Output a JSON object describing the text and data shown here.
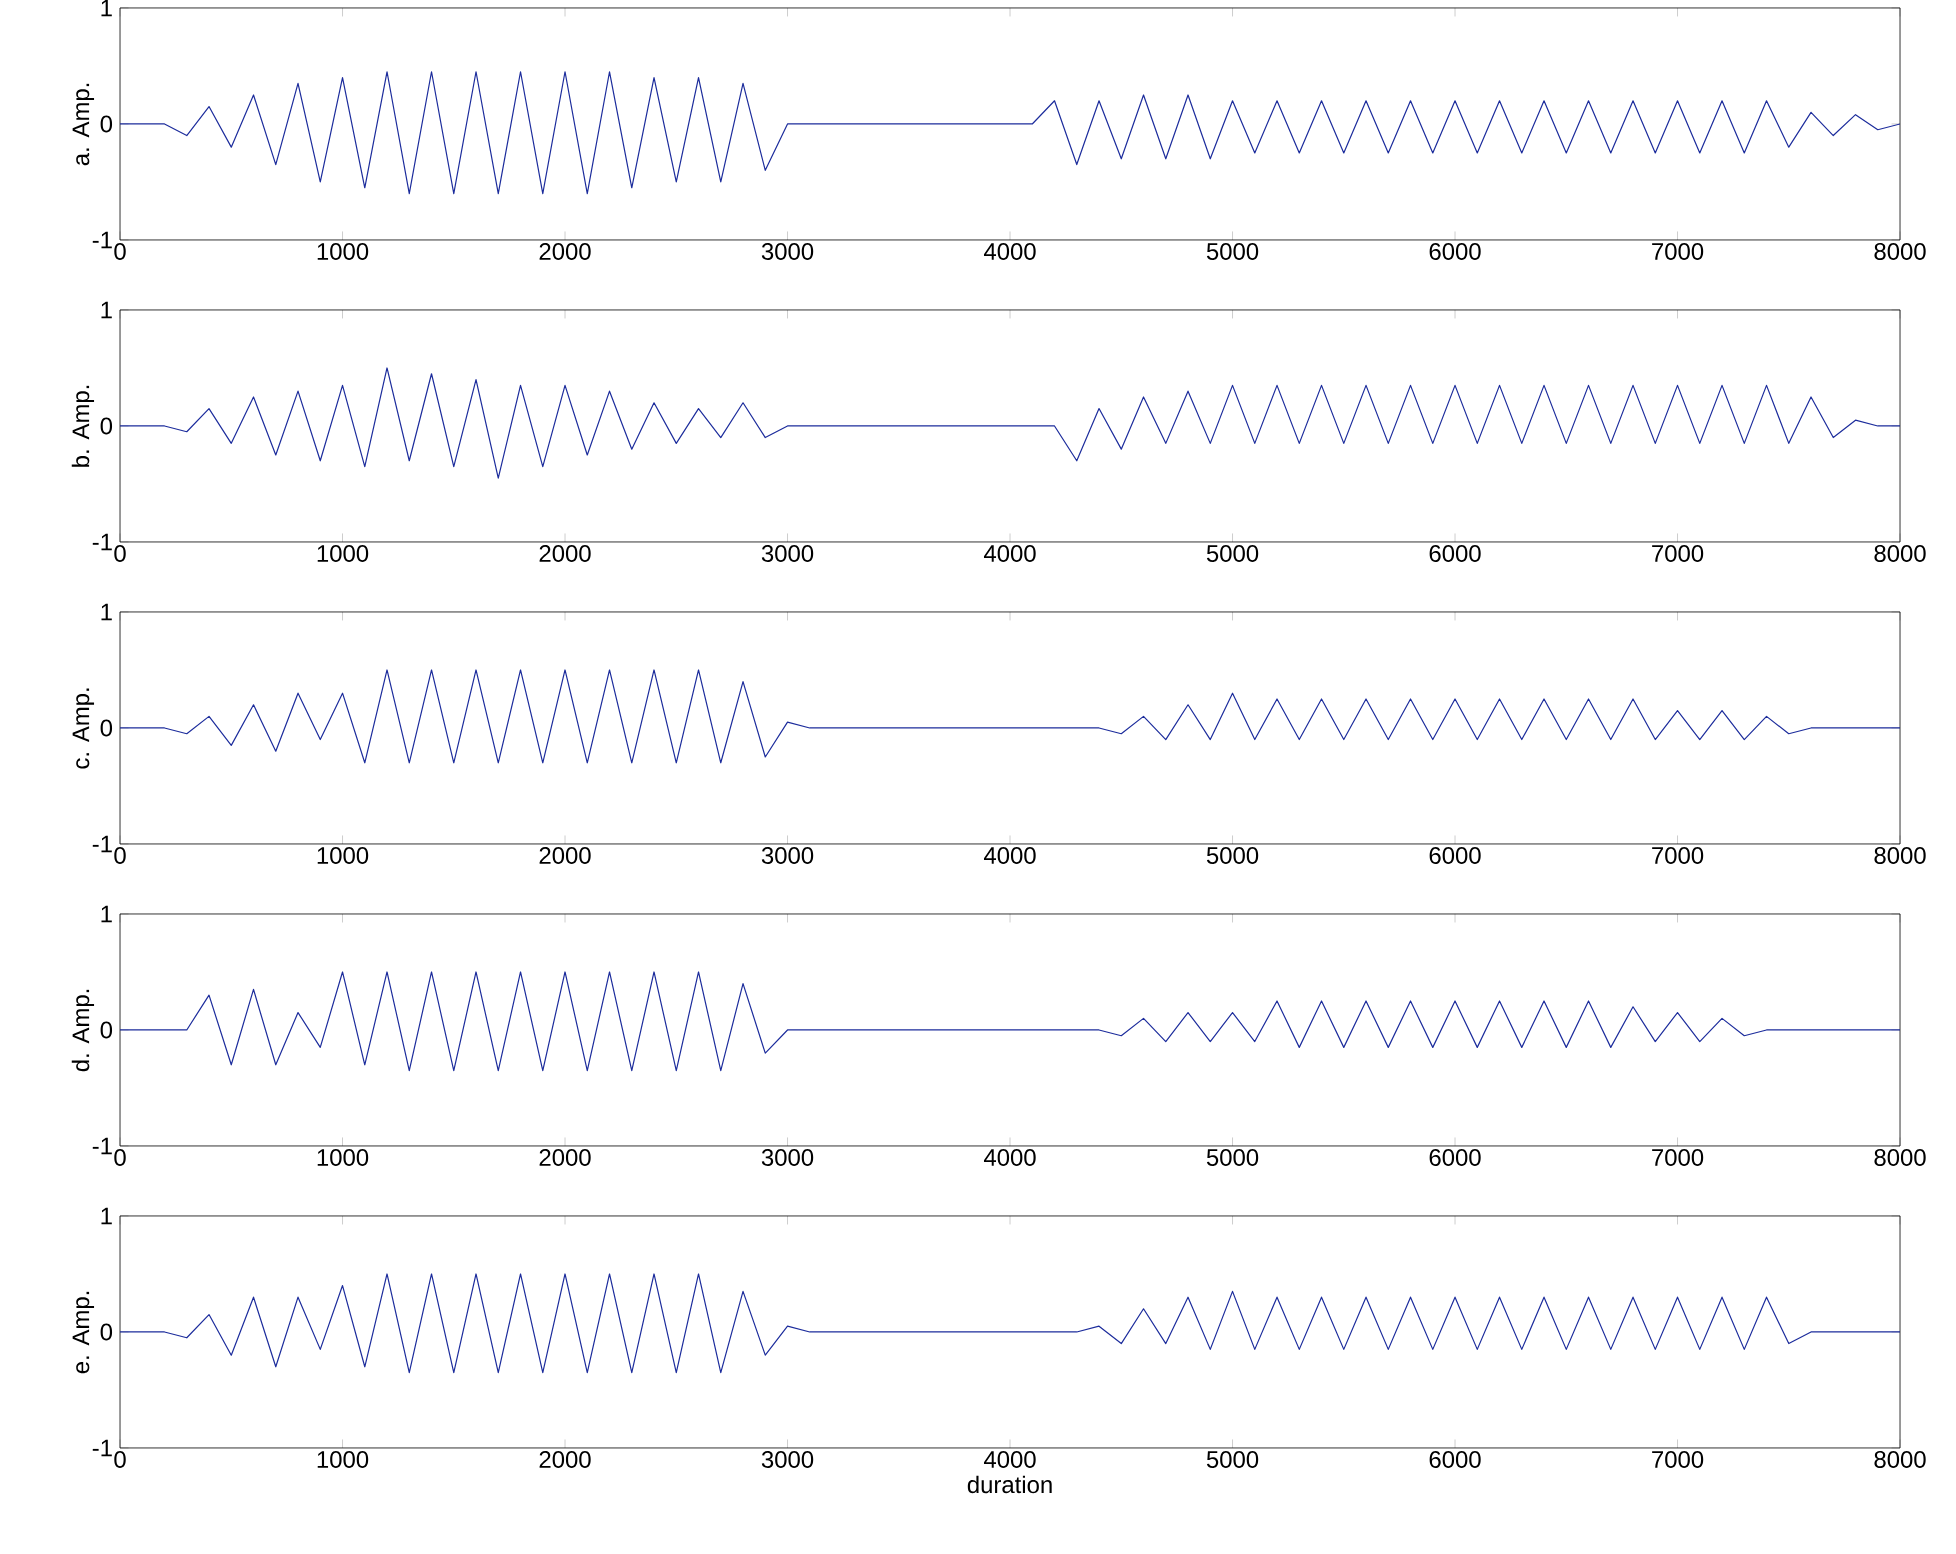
{
  "chart_data": [
    {
      "type": "line",
      "ylabel": "a. Amp.",
      "xlim": [
        0,
        8000
      ],
      "ylim": [
        -1,
        1
      ],
      "xticks": [
        0,
        1000,
        2000,
        3000,
        4000,
        5000,
        6000,
        7000,
        8000
      ],
      "yticks": [
        -1,
        0,
        1
      ],
      "x": [
        0,
        100,
        200,
        300,
        400,
        500,
        600,
        700,
        800,
        900,
        1000,
        1100,
        1200,
        1300,
        1400,
        1500,
        1600,
        1700,
        1800,
        1900,
        2000,
        2100,
        2200,
        2300,
        2400,
        2500,
        2600,
        2700,
        2800,
        2900,
        3000,
        3100,
        3200,
        3300,
        3400,
        3500,
        3600,
        3700,
        3800,
        3900,
        4000,
        4100,
        4200,
        4300,
        4400,
        4500,
        4600,
        4700,
        4800,
        4900,
        5000,
        5100,
        5200,
        5300,
        5400,
        5500,
        5600,
        5700,
        5800,
        5900,
        6000,
        6100,
        6200,
        6300,
        6400,
        6500,
        6600,
        6700,
        6800,
        6900,
        7000,
        7100,
        7200,
        7300,
        7400,
        7500,
        7600,
        7700,
        7800,
        7900,
        8000
      ],
      "series": [
        {
          "color": "#1c2c9c",
          "values": [
            0,
            0,
            0,
            -0.1,
            0.15,
            -0.2,
            0.25,
            -0.35,
            0.35,
            -0.5,
            0.4,
            -0.55,
            0.45,
            -0.6,
            0.45,
            -0.6,
            0.45,
            -0.6,
            0.45,
            -0.6,
            0.45,
            -0.6,
            0.45,
            -0.55,
            0.4,
            -0.5,
            0.4,
            -0.5,
            0.35,
            -0.4,
            0,
            0,
            0,
            0,
            0,
            0,
            0,
            0,
            0,
            0,
            0,
            0,
            0.2,
            -0.35,
            0.2,
            -0.3,
            0.25,
            -0.3,
            0.25,
            -0.3,
            0.2,
            -0.25,
            0.2,
            -0.25,
            0.2,
            -0.25,
            0.2,
            -0.25,
            0.2,
            -0.25,
            0.2,
            -0.25,
            0.2,
            -0.25,
            0.2,
            -0.25,
            0.2,
            -0.25,
            0.2,
            -0.25,
            0.2,
            -0.25,
            0.2,
            -0.25,
            0.2,
            -0.2,
            0.1,
            -0.1,
            0.08,
            -0.05,
            0
          ]
        }
      ]
    },
    {
      "type": "line",
      "ylabel": "b. Amp.",
      "xlim": [
        0,
        8000
      ],
      "ylim": [
        -1,
        1
      ],
      "xticks": [
        0,
        1000,
        2000,
        3000,
        4000,
        5000,
        6000,
        7000,
        8000
      ],
      "yticks": [
        -1,
        0,
        1
      ],
      "x": [
        0,
        100,
        200,
        300,
        400,
        500,
        600,
        700,
        800,
        900,
        1000,
        1100,
        1200,
        1300,
        1400,
        1500,
        1600,
        1700,
        1800,
        1900,
        2000,
        2100,
        2200,
        2300,
        2400,
        2500,
        2600,
        2700,
        2800,
        2900,
        3000,
        3100,
        3200,
        3300,
        3400,
        3500,
        3600,
        3700,
        3800,
        3900,
        4000,
        4100,
        4200,
        4300,
        4400,
        4500,
        4600,
        4700,
        4800,
        4900,
        5000,
        5100,
        5200,
        5300,
        5400,
        5500,
        5600,
        5700,
        5800,
        5900,
        6000,
        6100,
        6200,
        6300,
        6400,
        6500,
        6600,
        6700,
        6800,
        6900,
        7000,
        7100,
        7200,
        7300,
        7400,
        7500,
        7600,
        7700,
        7800,
        7900,
        8000
      ],
      "series": [
        {
          "color": "#1c2c9c",
          "values": [
            0,
            0,
            0,
            -0.05,
            0.15,
            -0.15,
            0.25,
            -0.25,
            0.3,
            -0.3,
            0.35,
            -0.35,
            0.5,
            -0.3,
            0.45,
            -0.35,
            0.4,
            -0.45,
            0.35,
            -0.35,
            0.35,
            -0.25,
            0.3,
            -0.2,
            0.2,
            -0.15,
            0.15,
            -0.1,
            0.2,
            -0.1,
            0,
            0,
            0,
            0,
            0,
            0,
            0,
            0,
            0,
            0,
            0,
            0,
            0,
            -0.3,
            0.15,
            -0.2,
            0.25,
            -0.15,
            0.3,
            -0.15,
            0.35,
            -0.15,
            0.35,
            -0.15,
            0.35,
            -0.15,
            0.35,
            -0.15,
            0.35,
            -0.15,
            0.35,
            -0.15,
            0.35,
            -0.15,
            0.35,
            -0.15,
            0.35,
            -0.15,
            0.35,
            -0.15,
            0.35,
            -0.15,
            0.35,
            -0.15,
            0.35,
            -0.15,
            0.25,
            -0.1,
            0.05,
            0,
            0
          ]
        }
      ]
    },
    {
      "type": "line",
      "ylabel": "c. Amp.",
      "xlim": [
        0,
        8000
      ],
      "ylim": [
        -1,
        1
      ],
      "xticks": [
        0,
        1000,
        2000,
        3000,
        4000,
        5000,
        6000,
        7000,
        8000
      ],
      "yticks": [
        -1,
        0,
        1
      ],
      "x": [
        0,
        100,
        200,
        300,
        400,
        500,
        600,
        700,
        800,
        900,
        1000,
        1100,
        1200,
        1300,
        1400,
        1500,
        1600,
        1700,
        1800,
        1900,
        2000,
        2100,
        2200,
        2300,
        2400,
        2500,
        2600,
        2700,
        2800,
        2900,
        3000,
        3100,
        3200,
        3300,
        3400,
        3500,
        3600,
        3700,
        3800,
        3900,
        4000,
        4100,
        4200,
        4300,
        4400,
        4500,
        4600,
        4700,
        4800,
        4900,
        5000,
        5100,
        5200,
        5300,
        5400,
        5500,
        5600,
        5700,
        5800,
        5900,
        6000,
        6100,
        6200,
        6300,
        6400,
        6500,
        6600,
        6700,
        6800,
        6900,
        7000,
        7100,
        7200,
        7300,
        7400,
        7500,
        7600,
        7700,
        7800,
        7900,
        8000
      ],
      "series": [
        {
          "color": "#1c2c9c",
          "values": [
            0,
            0,
            0,
            -0.05,
            0.1,
            -0.15,
            0.2,
            -0.2,
            0.3,
            -0.1,
            0.3,
            -0.3,
            0.5,
            -0.3,
            0.5,
            -0.3,
            0.5,
            -0.3,
            0.5,
            -0.3,
            0.5,
            -0.3,
            0.5,
            -0.3,
            0.5,
            -0.3,
            0.5,
            -0.3,
            0.4,
            -0.25,
            0.05,
            0,
            0,
            0,
            0,
            0,
            0,
            0,
            0,
            0,
            0,
            0,
            0,
            0,
            0,
            -0.05,
            0.1,
            -0.1,
            0.2,
            -0.1,
            0.3,
            -0.1,
            0.25,
            -0.1,
            0.25,
            -0.1,
            0.25,
            -0.1,
            0.25,
            -0.1,
            0.25,
            -0.1,
            0.25,
            -0.1,
            0.25,
            -0.1,
            0.25,
            -0.1,
            0.25,
            -0.1,
            0.15,
            -0.1,
            0.15,
            -0.1,
            0.1,
            -0.05,
            0,
            0,
            0,
            0,
            0
          ]
        }
      ]
    },
    {
      "type": "line",
      "ylabel": "d. Amp.",
      "xlim": [
        0,
        8000
      ],
      "ylim": [
        -1,
        1
      ],
      "xticks": [
        0,
        1000,
        2000,
        3000,
        4000,
        5000,
        6000,
        7000,
        8000
      ],
      "yticks": [
        -1,
        0,
        1
      ],
      "x": [
        0,
        100,
        200,
        300,
        400,
        500,
        600,
        700,
        800,
        900,
        1000,
        1100,
        1200,
        1300,
        1400,
        1500,
        1600,
        1700,
        1800,
        1900,
        2000,
        2100,
        2200,
        2300,
        2400,
        2500,
        2600,
        2700,
        2800,
        2900,
        3000,
        3100,
        3200,
        3300,
        3400,
        3500,
        3600,
        3700,
        3800,
        3900,
        4000,
        4100,
        4200,
        4300,
        4400,
        4500,
        4600,
        4700,
        4800,
        4900,
        5000,
        5100,
        5200,
        5300,
        5400,
        5500,
        5600,
        5700,
        5800,
        5900,
        6000,
        6100,
        6200,
        6300,
        6400,
        6500,
        6600,
        6700,
        6800,
        6900,
        7000,
        7100,
        7200,
        7300,
        7400,
        7500,
        7600,
        7700,
        7800,
        7900,
        8000
      ],
      "series": [
        {
          "color": "#1c2c9c",
          "values": [
            0,
            0,
            0,
            0,
            0.3,
            -0.3,
            0.35,
            -0.3,
            0.15,
            -0.15,
            0.5,
            -0.3,
            0.5,
            -0.35,
            0.5,
            -0.35,
            0.5,
            -0.35,
            0.5,
            -0.35,
            0.5,
            -0.35,
            0.5,
            -0.35,
            0.5,
            -0.35,
            0.5,
            -0.35,
            0.4,
            -0.2,
            0,
            0,
            0,
            0,
            0,
            0,
            0,
            0,
            0,
            0,
            0,
            0,
            0,
            0,
            0,
            -0.05,
            0.1,
            -0.1,
            0.15,
            -0.1,
            0.15,
            -0.1,
            0.25,
            -0.15,
            0.25,
            -0.15,
            0.25,
            -0.15,
            0.25,
            -0.15,
            0.25,
            -0.15,
            0.25,
            -0.15,
            0.25,
            -0.15,
            0.25,
            -0.15,
            0.2,
            -0.1,
            0.15,
            -0.1,
            0.1,
            -0.05,
            0,
            0,
            0,
            0,
            0,
            0,
            0
          ]
        }
      ]
    },
    {
      "type": "line",
      "ylabel": "e. Amp.",
      "xlabel": "duration",
      "xlim": [
        0,
        8000
      ],
      "ylim": [
        -1,
        1
      ],
      "xticks": [
        0,
        1000,
        2000,
        3000,
        4000,
        5000,
        6000,
        7000,
        8000
      ],
      "yticks": [
        -1,
        0,
        1
      ],
      "x": [
        0,
        100,
        200,
        300,
        400,
        500,
        600,
        700,
        800,
        900,
        1000,
        1100,
        1200,
        1300,
        1400,
        1500,
        1600,
        1700,
        1800,
        1900,
        2000,
        2100,
        2200,
        2300,
        2400,
        2500,
        2600,
        2700,
        2800,
        2900,
        3000,
        3100,
        3200,
        3300,
        3400,
        3500,
        3600,
        3700,
        3800,
        3900,
        4000,
        4100,
        4200,
        4300,
        4400,
        4500,
        4600,
        4700,
        4800,
        4900,
        5000,
        5100,
        5200,
        5300,
        5400,
        5500,
        5600,
        5700,
        5800,
        5900,
        6000,
        6100,
        6200,
        6300,
        6400,
        6500,
        6600,
        6700,
        6800,
        6900,
        7000,
        7100,
        7200,
        7300,
        7400,
        7500,
        7600,
        7700,
        7800,
        7900,
        8000
      ],
      "series": [
        {
          "color": "#1c2c9c",
          "values": [
            0,
            0,
            0,
            -0.05,
            0.15,
            -0.2,
            0.3,
            -0.3,
            0.3,
            -0.15,
            0.4,
            -0.3,
            0.5,
            -0.35,
            0.5,
            -0.35,
            0.5,
            -0.35,
            0.5,
            -0.35,
            0.5,
            -0.35,
            0.5,
            -0.35,
            0.5,
            -0.35,
            0.5,
            -0.35,
            0.35,
            -0.2,
            0.05,
            0,
            0,
            0,
            0,
            0,
            0,
            0,
            0,
            0,
            0,
            0,
            0,
            0,
            0.05,
            -0.1,
            0.2,
            -0.1,
            0.3,
            -0.15,
            0.35,
            -0.15,
            0.3,
            -0.15,
            0.3,
            -0.15,
            0.3,
            -0.15,
            0.3,
            -0.15,
            0.3,
            -0.15,
            0.3,
            -0.15,
            0.3,
            -0.15,
            0.3,
            -0.15,
            0.3,
            -0.15,
            0.3,
            -0.15,
            0.3,
            -0.15,
            0.3,
            -0.1,
            0,
            0,
            0,
            0,
            0
          ]
        }
      ]
    }
  ]
}
